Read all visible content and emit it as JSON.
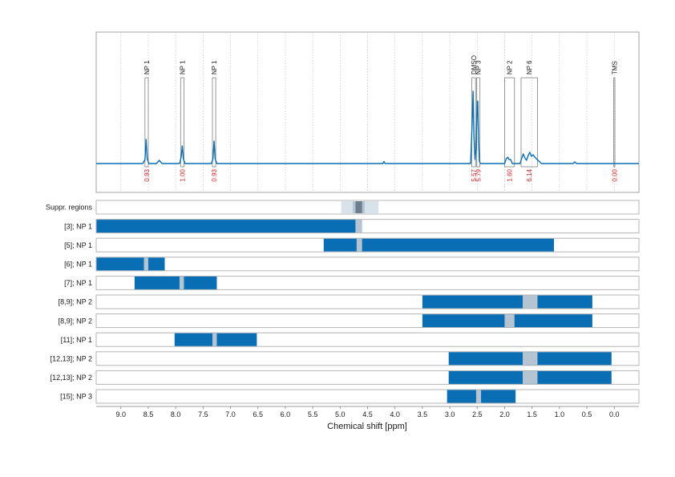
{
  "chart_data": {
    "type": "line",
    "xlabel": "Chemical shift [ppm]",
    "x_reversed": true,
    "xlim": [
      9.45,
      -0.45
    ],
    "x_ticks": [
      "9.0",
      "8.5",
      "8.0",
      "7.5",
      "7.0",
      "6.5",
      "6.0",
      "5.5",
      "5.0",
      "4.5",
      "4.0",
      "3.5",
      "3.0",
      "2.5",
      "2.0",
      "1.5",
      "1.0",
      "0.5",
      "0.0"
    ],
    "line_color": "#0a6eb4",
    "spectrum": [
      [
        9.45,
        0
      ],
      [
        8.6,
        0
      ],
      [
        8.56,
        0.05
      ],
      [
        8.54,
        0.3
      ],
      [
        8.52,
        0.06
      ],
      [
        8.49,
        0
      ],
      [
        8.35,
        0
      ],
      [
        8.3,
        0.04
      ],
      [
        8.25,
        0
      ],
      [
        7.93,
        0
      ],
      [
        7.9,
        0.08
      ],
      [
        7.88,
        0.22
      ],
      [
        7.86,
        0.06
      ],
      [
        7.83,
        0
      ],
      [
        7.35,
        0
      ],
      [
        7.32,
        0.06
      ],
      [
        7.3,
        0.28
      ],
      [
        7.28,
        0.06
      ],
      [
        7.25,
        0
      ],
      [
        4.22,
        0
      ],
      [
        4.2,
        0.025
      ],
      [
        4.18,
        0
      ],
      [
        2.62,
        0
      ],
      [
        2.59,
        0.55
      ],
      [
        2.575,
        0.9
      ],
      [
        2.56,
        0.35
      ],
      [
        2.54,
        0.05
      ],
      [
        2.52,
        0.2
      ],
      [
        2.5,
        0.75
      ],
      [
        2.49,
        0.78
      ],
      [
        2.475,
        0.3
      ],
      [
        2.46,
        0.03
      ],
      [
        2.44,
        0
      ],
      [
        2.0,
        0
      ],
      [
        1.97,
        0.06
      ],
      [
        1.94,
        0.08
      ],
      [
        1.92,
        0.05
      ],
      [
        1.89,
        0.05
      ],
      [
        1.86,
        0
      ],
      [
        1.72,
        0
      ],
      [
        1.7,
        0.04
      ],
      [
        1.66,
        0.12
      ],
      [
        1.63,
        0.07
      ],
      [
        1.6,
        0.04
      ],
      [
        1.57,
        0.1
      ],
      [
        1.54,
        0.14
      ],
      [
        1.51,
        0.09
      ],
      [
        1.48,
        0.11
      ],
      [
        1.45,
        0.08
      ],
      [
        1.42,
        0.06
      ],
      [
        1.39,
        0.04
      ],
      [
        1.36,
        0.02
      ],
      [
        1.33,
        0
      ],
      [
        0.75,
        0
      ],
      [
        0.72,
        0.02
      ],
      [
        0.69,
        0
      ],
      [
        -0.45,
        0
      ]
    ],
    "peak_regions": [
      {
        "label": "NP 1",
        "from": 8.56,
        "to": 8.5,
        "integral": "0.93"
      },
      {
        "label": "NP 1",
        "from": 7.91,
        "to": 7.85,
        "integral": "1.00"
      },
      {
        "label": "NP 1",
        "from": 7.33,
        "to": 7.27,
        "integral": "0.93"
      },
      {
        "label": "DMSO",
        "from": 2.6,
        "to": 2.53,
        "integral": "5.57"
      },
      {
        "label": "NP 3",
        "from": 2.51,
        "to": 2.45,
        "integral": "5.79"
      },
      {
        "label": "NP 2",
        "from": 2.0,
        "to": 1.82,
        "integral": "1.60"
      },
      {
        "label": "NP 6",
        "from": 1.7,
        "to": 1.4,
        "integral": "6.14"
      },
      {
        "label": "TMS",
        "from": 0.01,
        "to": -0.01,
        "integral": "0.00"
      }
    ],
    "suppressed": {
      "label": "Suppr. regions",
      "outer": [
        4.98,
        4.3
      ],
      "inner": [
        4.77,
        4.55
      ],
      "core": [
        4.72,
        4.6
      ]
    },
    "rows": [
      {
        "label": "[3]; NP 1",
        "from": 9.45,
        "to": 4.72,
        "gap_from": 4.72,
        "gap_to": 4.6
      },
      {
        "label": "[5]; NP 1",
        "from": 5.3,
        "to": 1.1,
        "gap_from": 4.7,
        "gap_to": 4.6
      },
      {
        "label": "[6]; NP 1",
        "from": 9.45,
        "to": 8.2,
        "gap_from": 8.58,
        "gap_to": 8.5
      },
      {
        "label": "[7]; NP 1",
        "from": 8.75,
        "to": 7.25,
        "gap_from": 7.93,
        "gap_to": 7.85
      },
      {
        "label": "[8,9]; NP 2",
        "from": 3.5,
        "to": 0.4,
        "gap_from": 1.67,
        "gap_to": 1.4
      },
      {
        "label": "[8,9]; NP 2",
        "from": 3.5,
        "to": 0.4,
        "gap_from": 2.0,
        "gap_to": 1.82
      },
      {
        "label": "[11]; NP 1",
        "from": 8.02,
        "to": 6.52,
        "gap_from": 7.33,
        "gap_to": 7.25
      },
      {
        "label": "[12,13]; NP 2",
        "from": 3.02,
        "to": 0.05,
        "gap_from": 1.67,
        "gap_to": 1.4
      },
      {
        "label": "[12,13]; NP 2",
        "from": 3.02,
        "to": 0.05,
        "gap_from": 1.67,
        "gap_to": 1.4
      },
      {
        "label": "[15]; NP 3",
        "from": 3.05,
        "to": 1.8,
        "gap_from": 2.52,
        "gap_to": 2.43
      }
    ],
    "bar_color": "#0a6eb4",
    "gap_color": "#b4c4d2",
    "suppr_outer_color": "#d8e2ea",
    "suppr_inner_color": "#b4c4d2",
    "suppr_core_color": "#6d7f8d",
    "integral_color": "#d62728"
  }
}
